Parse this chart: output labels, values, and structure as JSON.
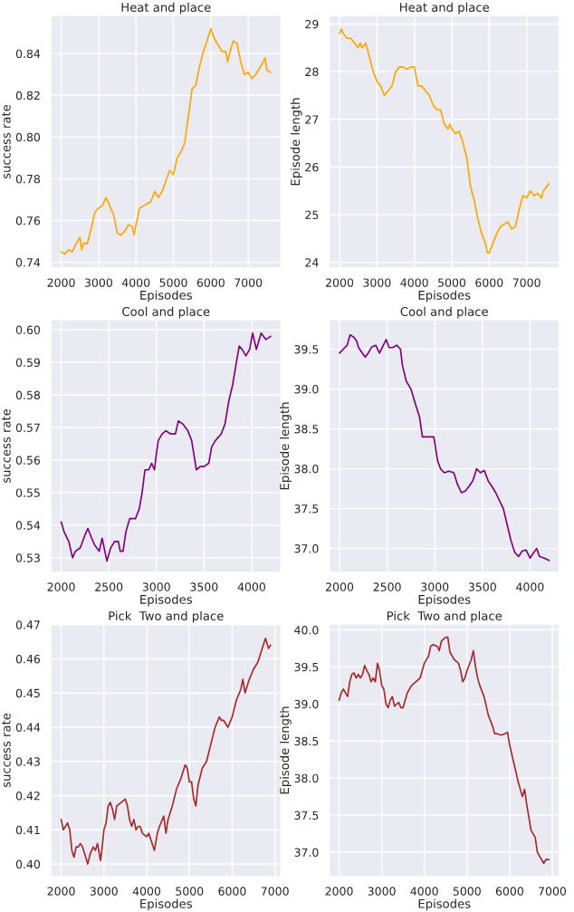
{
  "chart_data": [
    {
      "type": "line",
      "title": "Heat and place",
      "xlabel": "Episodes",
      "ylabel": "success rate",
      "grid": true,
      "x": [
        2000,
        2100,
        2200,
        2300,
        2400,
        2500,
        2550,
        2600,
        2700,
        2800,
        2900,
        3000,
        3100,
        3200,
        3300,
        3400,
        3500,
        3600,
        3700,
        3800,
        3900,
        3950,
        4000,
        4100,
        4200,
        4300,
        4400,
        4500,
        4600,
        4700,
        4800,
        4900,
        5000,
        5100,
        5200,
        5300,
        5400,
        5500,
        5600,
        5700,
        5800,
        5900,
        6000,
        6100,
        6200,
        6300,
        6400,
        6450,
        6500,
        6600,
        6700,
        6800,
        6900,
        7000,
        7100,
        7200,
        7300,
        7400,
        7450,
        7500,
        7600
      ],
      "series": [
        {
          "color": "#ffa500",
          "values": [
            0.745,
            0.744,
            0.746,
            0.745,
            0.749,
            0.752,
            0.746,
            0.749,
            0.749,
            0.756,
            0.764,
            0.766,
            0.767,
            0.771,
            0.767,
            0.763,
            0.754,
            0.753,
            0.755,
            0.758,
            0.757,
            0.753,
            0.758,
            0.766,
            0.767,
            0.768,
            0.769,
            0.774,
            0.771,
            0.774,
            0.779,
            0.784,
            0.782,
            0.79,
            0.793,
            0.797,
            0.81,
            0.823,
            0.825,
            0.834,
            0.841,
            0.846,
            0.852,
            0.847,
            0.844,
            0.841,
            0.841,
            0.836,
            0.84,
            0.846,
            0.845,
            0.836,
            0.83,
            0.831,
            0.828,
            0.83,
            0.833,
            0.836,
            0.838,
            0.832,
            0.831
          ]
        }
      ],
      "xlim": [
        1720,
        7880
      ],
      "ylim": [
        0.7372,
        0.8583
      ],
      "xticks": [
        2000,
        3000,
        4000,
        5000,
        6000,
        7000
      ],
      "yticks": [
        0.74,
        0.76,
        {
          "value": 0.8,
          "label": "0.80"
        },
        0.78,
        0.82,
        0.84
      ]
    },
    {
      "type": "line",
      "title": "Heat and place",
      "xlabel": "Episodes",
      "ylabel": "Episode length",
      "grid": true,
      "x": [
        2000,
        2050,
        2100,
        2200,
        2300,
        2400,
        2500,
        2550,
        2600,
        2700,
        2800,
        2900,
        3000,
        3100,
        3200,
        3300,
        3400,
        3500,
        3600,
        3700,
        3800,
        3900,
        4000,
        4100,
        4200,
        4300,
        4400,
        4500,
        4600,
        4700,
        4800,
        4900,
        4950,
        5000,
        5100,
        5200,
        5300,
        5400,
        5500,
        5600,
        5700,
        5800,
        5900,
        5950,
        6000,
        6100,
        6200,
        6300,
        6400,
        6500,
        6600,
        6700,
        6800,
        6900,
        7000,
        7100,
        7200,
        7300,
        7400,
        7450,
        7500,
        7600
      ],
      "series": [
        {
          "color": "#ffa500",
          "values": [
            28.8,
            28.9,
            28.8,
            28.7,
            28.7,
            28.6,
            28.5,
            28.6,
            28.5,
            28.6,
            28.3,
            28.0,
            27.8,
            27.7,
            27.5,
            27.6,
            27.7,
            28.0,
            28.1,
            28.1,
            28.05,
            28.1,
            28.1,
            27.7,
            27.7,
            27.6,
            27.5,
            27.3,
            27.2,
            27.2,
            26.9,
            26.8,
            26.9,
            26.8,
            26.7,
            26.75,
            26.5,
            26.2,
            25.6,
            25.3,
            24.9,
            24.6,
            24.4,
            24.2,
            24.2,
            24.4,
            24.6,
            24.75,
            24.8,
            24.85,
            24.7,
            24.75,
            25.1,
            25.4,
            25.35,
            25.5,
            25.4,
            25.45,
            25.35,
            25.5,
            25.55,
            25.65
          ]
        }
      ],
      "xlim": [
        1720,
        7880
      ],
      "ylim": [
        23.88,
        29.18
      ],
      "xticks": [
        2000,
        3000,
        4000,
        5000,
        6000,
        7000
      ],
      "yticks": [
        24,
        25,
        26,
        27,
        28,
        29
      ]
    },
    {
      "type": "line",
      "title": "Cool and place",
      "xlabel": "Episodes",
      "ylabel": "success rate",
      "grid": true,
      "x": [
        2000,
        2030,
        2080,
        2120,
        2150,
        2200,
        2250,
        2280,
        2320,
        2350,
        2400,
        2430,
        2480,
        2520,
        2560,
        2600,
        2620,
        2650,
        2680,
        2720,
        2780,
        2820,
        2850,
        2880,
        2920,
        2950,
        2980,
        3000,
        3020,
        3060,
        3100,
        3150,
        3200,
        3230,
        3280,
        3330,
        3370,
        3420,
        3460,
        3500,
        3550,
        3580,
        3620,
        3680,
        3720,
        3760,
        3800,
        3840,
        3870,
        3900,
        3940,
        3980,
        4010,
        4050,
        4100,
        4150,
        4200
      ],
      "series": [
        {
          "color": "#800080",
          "values": [
            0.541,
            0.538,
            0.535,
            0.53,
            0.532,
            0.533,
            0.537,
            0.539,
            0.536,
            0.534,
            0.532,
            0.536,
            0.529,
            0.533,
            0.535,
            0.535,
            0.532,
            0.532,
            0.538,
            0.542,
            0.542,
            0.545,
            0.55,
            0.557,
            0.557,
            0.559,
            0.557,
            0.562,
            0.566,
            0.568,
            0.569,
            0.568,
            0.568,
            0.572,
            0.571,
            0.569,
            0.566,
            0.557,
            0.558,
            0.558,
            0.559,
            0.564,
            0.566,
            0.568,
            0.571,
            0.578,
            0.583,
            0.59,
            0.595,
            0.594,
            0.592,
            0.594,
            0.599,
            0.594,
            0.599,
            0.597,
            0.598
          ]
        }
      ],
      "xlim": [
        1890,
        4310
      ],
      "ylim": [
        0.5255,
        0.6031
      ],
      "xticks": [
        2000,
        2500,
        3000,
        3500,
        4000
      ],
      "yticks": [
        0.53,
        0.54,
        0.55,
        0.56,
        0.57,
        0.58,
        0.59,
        {
          "value": 0.6,
          "label": "0.60"
        }
      ]
    },
    {
      "type": "line",
      "title": "Cool and place",
      "xlabel": "Episodes",
      "ylabel": "Episode length",
      "grid": true,
      "x": [
        2000,
        2040,
        2080,
        2110,
        2150,
        2180,
        2200,
        2240,
        2270,
        2300,
        2340,
        2380,
        2420,
        2460,
        2490,
        2520,
        2560,
        2600,
        2640,
        2660,
        2700,
        2750,
        2800,
        2840,
        2870,
        2920,
        2960,
        2990,
        3030,
        3060,
        3100,
        3150,
        3200,
        3240,
        3280,
        3320,
        3360,
        3400,
        3440,
        3480,
        3520,
        3560,
        3600,
        3640,
        3680,
        3720,
        3760,
        3800,
        3840,
        3880,
        3920,
        3960,
        4000,
        4040,
        4070,
        4100,
        4150,
        4200
      ],
      "series": [
        {
          "color": "#800080",
          "values": [
            39.45,
            39.5,
            39.55,
            39.68,
            39.65,
            39.6,
            39.52,
            39.45,
            39.4,
            39.45,
            39.53,
            39.55,
            39.45,
            39.55,
            39.62,
            39.52,
            39.52,
            39.55,
            39.5,
            39.3,
            39.1,
            39.0,
            38.8,
            38.65,
            38.4,
            38.4,
            38.4,
            38.4,
            38.1,
            38.0,
            37.95,
            37.97,
            37.95,
            37.8,
            37.7,
            37.72,
            37.78,
            37.85,
            38.0,
            37.95,
            37.98,
            37.85,
            37.78,
            37.7,
            37.6,
            37.5,
            37.3,
            37.1,
            36.95,
            36.9,
            36.97,
            36.98,
            36.88,
            36.95,
            37.0,
            36.9,
            36.88,
            36.85
          ]
        }
      ],
      "xlim": [
        1890,
        4310
      ],
      "ylim": [
        36.7,
        39.87
      ],
      "xticks": [
        2000,
        2500,
        3000,
        3500,
        4000
      ],
      "yticks": [
        {
          "value": 37,
          "label": "37.0"
        },
        37.5,
        {
          "value": 38,
          "label": "38.0"
        },
        38.5,
        {
          "value": 39,
          "label": "39.0"
        },
        39.5
      ]
    },
    {
      "type": "line",
      "title": "Pick  Two and place",
      "xlabel": "Episodes",
      "ylabel": "success rate",
      "grid": true,
      "x": [
        2000,
        2050,
        2100,
        2150,
        2200,
        2250,
        2300,
        2350,
        2400,
        2450,
        2500,
        2550,
        2620,
        2680,
        2750,
        2800,
        2850,
        2920,
        2960,
        3000,
        3050,
        3100,
        3150,
        3200,
        3250,
        3300,
        3400,
        3500,
        3550,
        3600,
        3650,
        3700,
        3750,
        3800,
        3850,
        3900,
        4000,
        4050,
        4100,
        4180,
        4250,
        4300,
        4400,
        4450,
        4500,
        4600,
        4700,
        4800,
        4900,
        4950,
        5000,
        5050,
        5100,
        5150,
        5200,
        5300,
        5400,
        5500,
        5600,
        5700,
        5750,
        5800,
        5900,
        6000,
        6100,
        6200,
        6250,
        6300,
        6400,
        6500,
        6600,
        6700,
        6780,
        6850,
        6900
      ],
      "series": [
        {
          "color": "#a52a2a",
          "values": [
            0.413,
            0.41,
            0.411,
            0.412,
            0.41,
            0.404,
            0.402,
            0.405,
            0.405,
            0.406,
            0.405,
            0.403,
            0.4,
            0.403,
            0.405,
            0.404,
            0.406,
            0.401,
            0.405,
            0.41,
            0.412,
            0.417,
            0.418,
            0.416,
            0.413,
            0.417,
            0.418,
            0.419,
            0.417,
            0.413,
            0.411,
            0.413,
            0.41,
            0.411,
            0.411,
            0.409,
            0.408,
            0.409,
            0.407,
            0.404,
            0.409,
            0.411,
            0.414,
            0.409,
            0.413,
            0.417,
            0.422,
            0.425,
            0.429,
            0.428,
            0.424,
            0.424,
            0.419,
            0.417,
            0.423,
            0.428,
            0.43,
            0.435,
            0.44,
            0.443,
            0.442,
            0.442,
            0.44,
            0.443,
            0.448,
            0.451,
            0.454,
            0.45,
            0.454,
            0.457,
            0.459,
            0.463,
            0.466,
            0.463,
            0.464
          ]
        }
      ],
      "xlim": [
        1755,
        7145
      ],
      "ylim": [
        0.3963,
        0.4702
      ],
      "xticks": [
        2000,
        3000,
        4000,
        5000,
        6000,
        7000
      ],
      "yticks": [
        {
          "value": 0.4,
          "label": "0.40"
        },
        0.41,
        0.42,
        0.43,
        0.44,
        0.45,
        0.46,
        0.47
      ]
    },
    {
      "type": "line",
      "title": "Pick  Two and place",
      "xlabel": "Episodes",
      "ylabel": "Episode length",
      "grid": true,
      "x": [
        2000,
        2050,
        2100,
        2150,
        2200,
        2250,
        2300,
        2350,
        2400,
        2450,
        2500,
        2550,
        2600,
        2650,
        2700,
        2750,
        2800,
        2850,
        2900,
        2950,
        3000,
        3050,
        3100,
        3150,
        3200,
        3250,
        3300,
        3350,
        3400,
        3450,
        3500,
        3550,
        3600,
        3700,
        3800,
        3900,
        4000,
        4100,
        4150,
        4200,
        4300,
        4350,
        4400,
        4500,
        4550,
        4600,
        4700,
        4800,
        4850,
        4900,
        4950,
        5000,
        5100,
        5150,
        5200,
        5250,
        5300,
        5400,
        5500,
        5600,
        5650,
        5700,
        5800,
        5900,
        5950,
        6000,
        6100,
        6200,
        6300,
        6350,
        6400,
        6500,
        6600,
        6650,
        6700,
        6800,
        6850,
        6920
      ],
      "series": [
        {
          "color": "#a52a2a",
          "values": [
            39.05,
            39.15,
            39.2,
            39.15,
            39.1,
            39.3,
            39.4,
            39.42,
            39.35,
            39.4,
            39.35,
            39.4,
            39.52,
            39.45,
            39.4,
            39.3,
            39.35,
            39.3,
            39.55,
            39.45,
            39.25,
            39.2,
            39.0,
            38.95,
            39.05,
            39.1,
            38.97,
            39.0,
            39.02,
            38.95,
            38.95,
            39.05,
            39.15,
            39.25,
            39.3,
            39.35,
            39.55,
            39.65,
            39.78,
            39.8,
            39.78,
            39.72,
            39.85,
            39.9,
            39.9,
            39.7,
            39.6,
            39.55,
            39.45,
            39.3,
            39.35,
            39.45,
            39.6,
            39.72,
            39.5,
            39.35,
            39.25,
            39.1,
            38.85,
            38.7,
            38.6,
            38.6,
            38.58,
            38.6,
            38.62,
            38.45,
            38.2,
            37.95,
            37.75,
            37.85,
            37.65,
            37.3,
            37.2,
            37.0,
            36.95,
            36.85,
            36.9,
            36.9
          ]
        }
      ],
      "xlim": [
        1765,
        7170
      ],
      "ylim": [
        36.67,
        40.08
      ],
      "xticks": [
        2000,
        3000,
        4000,
        5000,
        6000,
        7000
      ],
      "yticks": [
        {
          "value": 37,
          "label": "37.0"
        },
        37.5,
        {
          "value": 38,
          "label": "38.0"
        },
        38.5,
        {
          "value": 39,
          "label": "39.0"
        },
        39.5,
        {
          "value": 40,
          "label": "40.0"
        }
      ]
    }
  ]
}
